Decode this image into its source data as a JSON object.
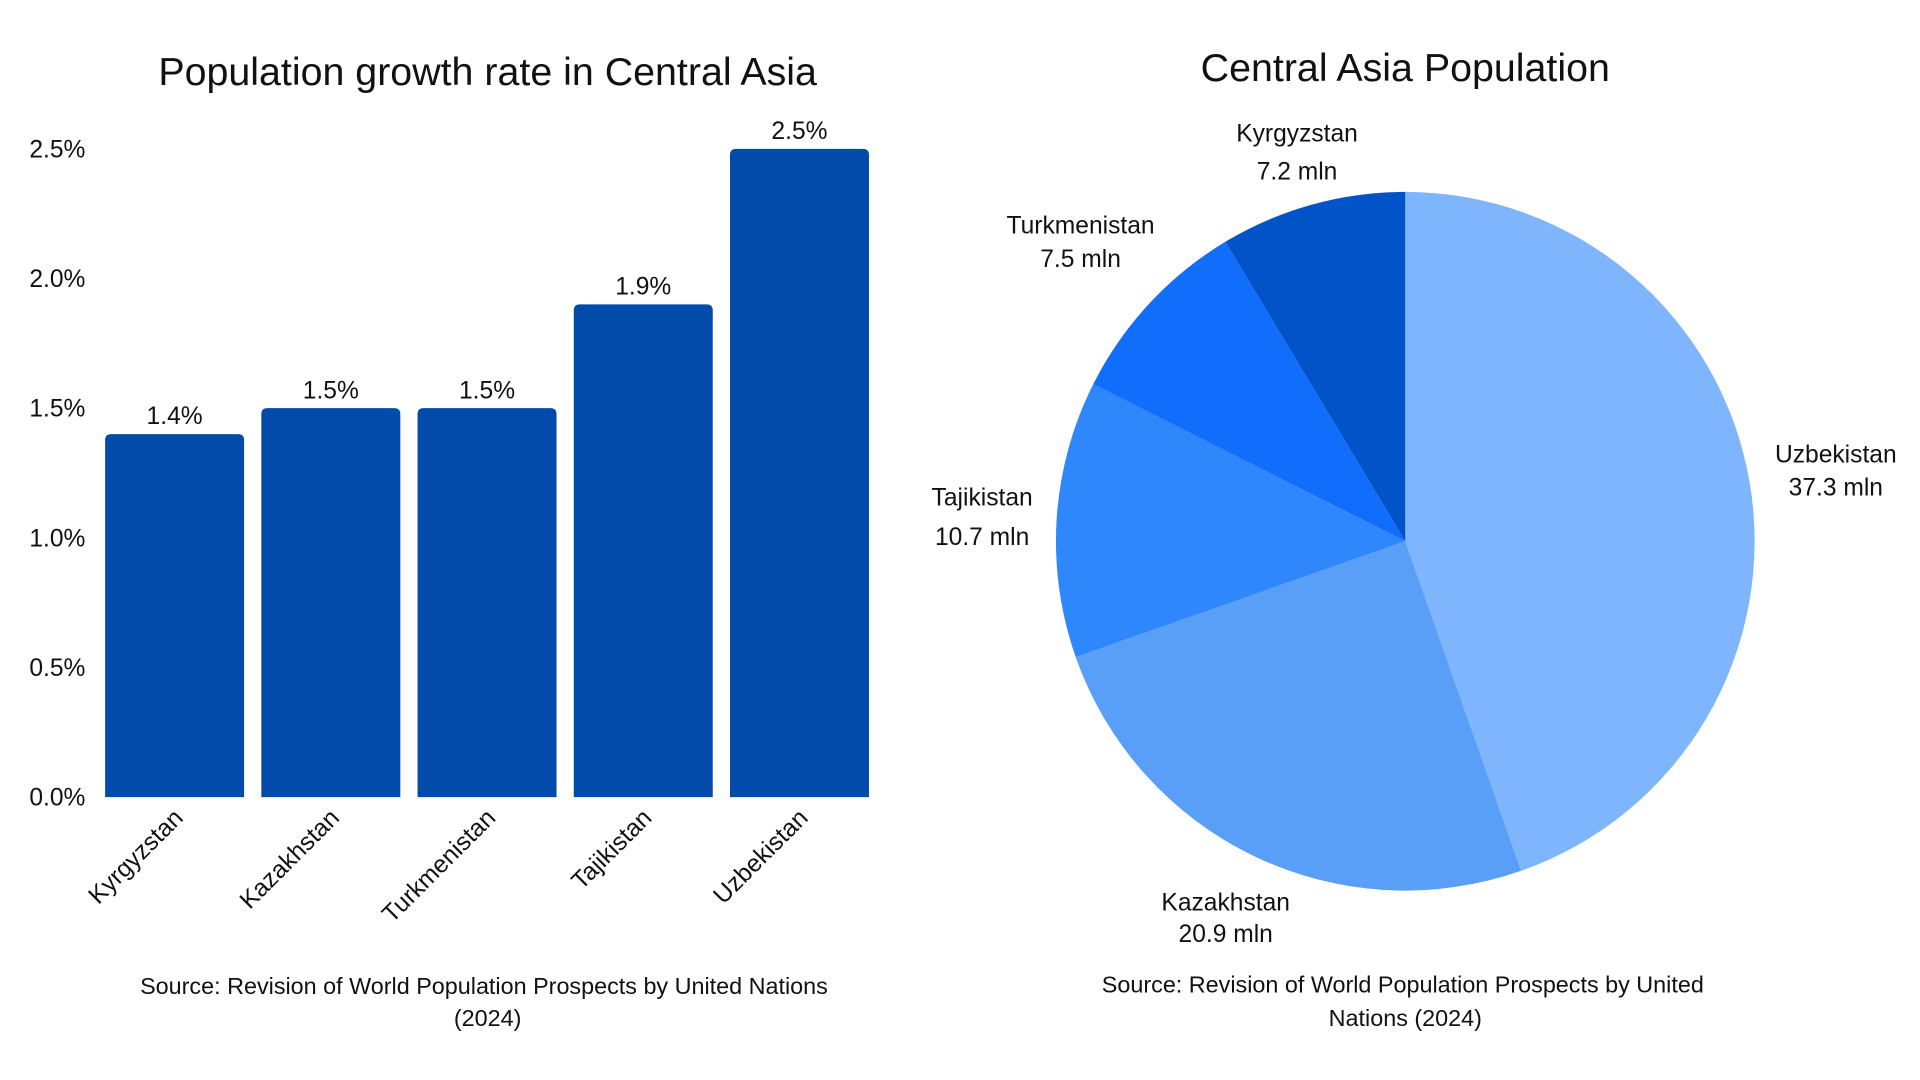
{
  "chart_data": [
    {
      "type": "bar",
      "title": "Population growth rate in Central Asia",
      "categories": [
        "Kyrgyzstan",
        "Kazakhstan",
        "Turkmenistan",
        "Tajikistan",
        "Uzbekistan"
      ],
      "values": [
        1.4,
        1.5,
        1.5,
        1.9,
        2.5
      ],
      "data_labels": [
        "1.4%",
        "1.5%",
        "1.5%",
        "1.9%",
        "2.5%"
      ],
      "ylim": [
        0,
        2.5
      ],
      "yticks": [
        "0.0%",
        "0.5%",
        "1.0%",
        "1.5%",
        "2.0%",
        "2.5%"
      ],
      "xlabel": "",
      "ylabel": "",
      "grid": false,
      "bar_color": "#024bab",
      "source_lines": [
        "Source: Revision of World Population Prospects by United Nations",
        "(2024)"
      ]
    },
    {
      "type": "pie",
      "title": "Central Asia Population",
      "unit": "mln",
      "slices": [
        {
          "label": "Uzbekistan",
          "value": 37.3,
          "value_label": "37.3 mln",
          "color": "#7fb5fd"
        },
        {
          "label": "Kazakhstan",
          "value": 20.9,
          "value_label": "20.9 mln",
          "color": "#5a9ff7"
        },
        {
          "label": "Tajikistan",
          "value": 10.7,
          "value_label": "10.7 mln",
          "color": "#2e87fb"
        },
        {
          "label": "Turkmenistan",
          "value": 7.5,
          "value_label": "7.5 mln",
          "color": "#116dfc"
        },
        {
          "label": "Kyrgyzstan",
          "value": 7.2,
          "value_label": "7.2 mln",
          "color": "#0353c8"
        }
      ],
      "start": "top",
      "direction": "clockwise",
      "source_lines": [
        "Source: Revision of World Population Prospects by United",
        "Nations (2024)"
      ]
    }
  ]
}
